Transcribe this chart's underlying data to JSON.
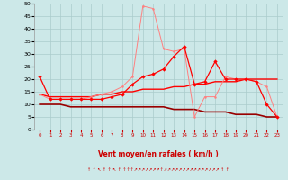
{
  "xlabel": "Vent moyen/en rafales ( km/h )",
  "xlim": [
    -0.5,
    23.5
  ],
  "ylim": [
    0,
    50
  ],
  "yticks": [
    0,
    5,
    10,
    15,
    20,
    25,
    30,
    35,
    40,
    45,
    50
  ],
  "xticks": [
    0,
    1,
    2,
    3,
    4,
    5,
    6,
    7,
    8,
    9,
    10,
    11,
    12,
    13,
    14,
    15,
    16,
    17,
    18,
    19,
    20,
    21,
    22,
    23
  ],
  "bg_color": "#cce8e8",
  "grid_color": "#aacccc",
  "line_red_color": "#ff0000",
  "line_pink_color": "#ff8080",
  "line_darkred_color": "#990000",
  "x": [
    0,
    1,
    2,
    3,
    4,
    5,
    6,
    7,
    8,
    9,
    10,
    11,
    12,
    13,
    14,
    15,
    16,
    17,
    18,
    19,
    20,
    21,
    22,
    23
  ],
  "line_mean_y": [
    21,
    12,
    12,
    12,
    12,
    12,
    12,
    13,
    14,
    18,
    21,
    22,
    24,
    29,
    33,
    18,
    19,
    27,
    20,
    20,
    20,
    19,
    10,
    5
  ],
  "line_gust_y": [
    14,
    12,
    12,
    12,
    12,
    13,
    14,
    15,
    17,
    21,
    49,
    48,
    32,
    31,
    32,
    5,
    13,
    13,
    21,
    20,
    20,
    19,
    17,
    5
  ],
  "line_trend1_y": [
    14,
    13,
    13,
    13,
    13,
    13,
    14,
    14,
    15,
    15,
    16,
    16,
    16,
    17,
    17,
    18,
    18,
    19,
    19,
    19,
    20,
    20,
    20,
    20
  ],
  "line_trend2_y": [
    10,
    10,
    10,
    9,
    9,
    9,
    9,
    9,
    9,
    9,
    9,
    9,
    9,
    8,
    8,
    8,
    7,
    7,
    7,
    6,
    6,
    6,
    5,
    5
  ],
  "arrows": "↑ ↑ ↖ ↑ ↑ ↖ ↑ ↑↑↑↗↗↗↗↗↗↗↑↗↗↗↗↗↗↗↗↗↗↗↗↗↗↗ ↑ ↑",
  "xlabel_color": "#cc0000",
  "tick_color": "#cc0000",
  "arrow_color": "#cc0000"
}
